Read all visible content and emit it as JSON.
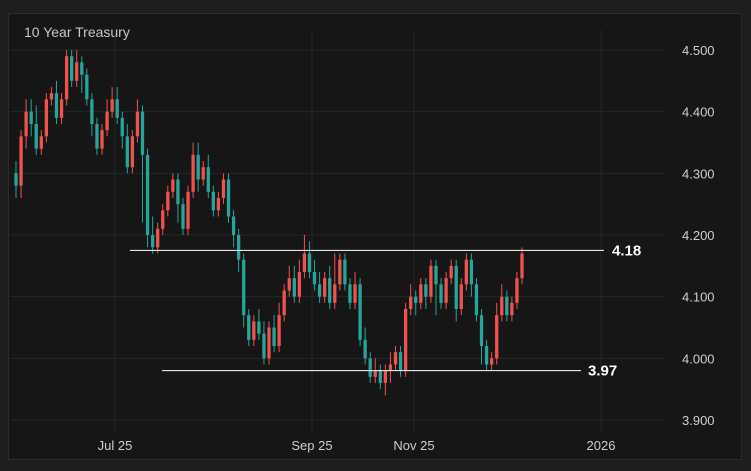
{
  "chart_data": {
    "type": "candlestick",
    "title": "10 Year Treasury",
    "ylim": [
      3.88,
      4.52
    ],
    "y_ticks": [
      "4.500",
      "4.400",
      "4.300",
      "4.200",
      "4.100",
      "4.000",
      "3.900"
    ],
    "x_ticks": [
      "Jul 25",
      "Sep 25",
      "Nov 25",
      "2026"
    ],
    "grid": true,
    "levels": [
      {
        "label": "4.18",
        "value": 4.175
      },
      {
        "label": "3.97",
        "value": 3.98
      }
    ],
    "colors": {
      "up": "#ef5350",
      "down": "#26a69a",
      "level": "#ffffff",
      "grid": "#262626"
    },
    "candles": [
      [
        4.3,
        4.28,
        4.32,
        4.26
      ],
      [
        4.28,
        4.36,
        4.37,
        4.26
      ],
      [
        4.36,
        4.4,
        4.42,
        4.34
      ],
      [
        4.4,
        4.38,
        4.42,
        4.36
      ],
      [
        4.38,
        4.34,
        4.41,
        4.33
      ],
      [
        4.34,
        4.36,
        4.37,
        4.33
      ],
      [
        4.36,
        4.42,
        4.43,
        4.35
      ],
      [
        4.42,
        4.43,
        4.44,
        4.41
      ],
      [
        4.43,
        4.39,
        4.45,
        4.38
      ],
      [
        4.39,
        4.42,
        4.43,
        4.38
      ],
      [
        4.42,
        4.49,
        4.5,
        4.41
      ],
      [
        4.49,
        4.45,
        4.5,
        4.44
      ],
      [
        4.45,
        4.48,
        4.5,
        4.44
      ],
      [
        4.48,
        4.46,
        4.49,
        4.43
      ],
      [
        4.46,
        4.42,
        4.47,
        4.41
      ],
      [
        4.42,
        4.38,
        4.43,
        4.36
      ],
      [
        4.38,
        4.34,
        4.39,
        4.33
      ],
      [
        4.34,
        4.37,
        4.38,
        4.33
      ],
      [
        4.37,
        4.4,
        4.42,
        4.36
      ],
      [
        4.4,
        4.42,
        4.44,
        4.39
      ],
      [
        4.42,
        4.39,
        4.44,
        4.38
      ],
      [
        4.39,
        4.36,
        4.4,
        4.34
      ],
      [
        4.36,
        4.31,
        4.38,
        4.3
      ],
      [
        4.31,
        4.36,
        4.37,
        4.3
      ],
      [
        4.36,
        4.4,
        4.42,
        4.35
      ],
      [
        4.4,
        4.33,
        4.41,
        4.22
      ],
      [
        4.33,
        4.2,
        4.34,
        4.18
      ],
      [
        4.2,
        4.18,
        4.23,
        4.17
      ],
      [
        4.18,
        4.21,
        4.22,
        4.17
      ],
      [
        4.21,
        4.24,
        4.25,
        4.2
      ],
      [
        4.24,
        4.27,
        4.28,
        4.23
      ],
      [
        4.27,
        4.29,
        4.3,
        4.26
      ],
      [
        4.29,
        4.25,
        4.3,
        4.22
      ],
      [
        4.25,
        4.21,
        4.26,
        4.2
      ],
      [
        4.21,
        4.27,
        4.28,
        4.2
      ],
      [
        4.27,
        4.33,
        4.35,
        4.26
      ],
      [
        4.33,
        4.29,
        4.35,
        4.27
      ],
      [
        4.29,
        4.31,
        4.32,
        4.28
      ],
      [
        4.31,
        4.27,
        4.33,
        4.26
      ],
      [
        4.27,
        4.24,
        4.28,
        4.23
      ],
      [
        4.24,
        4.26,
        4.27,
        4.23
      ],
      [
        4.26,
        4.29,
        4.3,
        4.25
      ],
      [
        4.29,
        4.23,
        4.3,
        4.22
      ],
      [
        4.23,
        4.2,
        4.24,
        4.18
      ],
      [
        4.2,
        4.16,
        4.21,
        4.14
      ],
      [
        4.16,
        4.07,
        4.17,
        4.05
      ],
      [
        4.07,
        4.03,
        4.08,
        4.02
      ],
      [
        4.03,
        4.06,
        4.07,
        4.02
      ],
      [
        4.06,
        4.04,
        4.08,
        4.03
      ],
      [
        4.04,
        4.0,
        4.06,
        3.99
      ],
      [
        4.0,
        4.05,
        4.06,
        3.99
      ],
      [
        4.05,
        4.02,
        4.07,
        4.01
      ],
      [
        4.02,
        4.07,
        4.09,
        4.01
      ],
      [
        4.07,
        4.11,
        4.12,
        4.06
      ],
      [
        4.11,
        4.13,
        4.15,
        4.1
      ],
      [
        4.13,
        4.1,
        4.15,
        4.09
      ],
      [
        4.1,
        4.14,
        4.16,
        4.09
      ],
      [
        4.14,
        4.17,
        4.2,
        4.13
      ],
      [
        4.17,
        4.14,
        4.19,
        4.13
      ],
      [
        4.14,
        4.12,
        4.16,
        4.11
      ],
      [
        4.12,
        4.1,
        4.14,
        4.09
      ],
      [
        4.1,
        4.13,
        4.14,
        4.09
      ],
      [
        4.13,
        4.09,
        4.15,
        4.08
      ],
      [
        4.09,
        4.12,
        4.17,
        4.08
      ],
      [
        4.12,
        4.16,
        4.17,
        4.11
      ],
      [
        4.16,
        4.12,
        4.17,
        4.11
      ],
      [
        4.12,
        4.09,
        4.13,
        4.08
      ],
      [
        4.09,
        4.12,
        4.14,
        4.08
      ],
      [
        4.12,
        4.03,
        4.13,
        4.02
      ],
      [
        4.03,
        4.0,
        4.05,
        3.99
      ],
      [
        4.0,
        3.97,
        4.01,
        3.96
      ],
      [
        3.97,
        3.98,
        4.0,
        3.96
      ],
      [
        3.98,
        3.96,
        3.99,
        3.95
      ],
      [
        3.96,
        3.98,
        3.99,
        3.94
      ],
      [
        3.98,
        3.99,
        4.01,
        3.96
      ],
      [
        3.99,
        4.01,
        4.02,
        3.98
      ],
      [
        4.01,
        3.98,
        4.02,
        3.97
      ],
      [
        3.98,
        4.08,
        4.09,
        3.97
      ],
      [
        4.08,
        4.1,
        4.12,
        4.07
      ],
      [
        4.1,
        4.09,
        4.11,
        4.07
      ],
      [
        4.09,
        4.12,
        4.13,
        4.08
      ],
      [
        4.12,
        4.1,
        4.13,
        4.08
      ],
      [
        4.1,
        4.15,
        4.16,
        4.09
      ],
      [
        4.15,
        4.12,
        4.16,
        4.07
      ],
      [
        4.12,
        4.09,
        4.13,
        4.08
      ],
      [
        4.09,
        4.13,
        4.14,
        4.08
      ],
      [
        4.13,
        4.15,
        4.16,
        4.12
      ],
      [
        4.15,
        4.08,
        4.16,
        4.06
      ],
      [
        4.08,
        4.12,
        4.13,
        4.07
      ],
      [
        4.12,
        4.16,
        4.17,
        4.11
      ],
      [
        4.16,
        4.12,
        4.17,
        4.1
      ],
      [
        4.12,
        4.07,
        4.13,
        4.06
      ],
      [
        4.07,
        4.02,
        4.08,
        3.99
      ],
      [
        4.02,
        3.99,
        4.03,
        3.98
      ],
      [
        3.99,
        4.0,
        4.01,
        3.98
      ],
      [
        4.0,
        4.07,
        4.09,
        3.99
      ],
      [
        4.07,
        4.1,
        4.12,
        4.06
      ],
      [
        4.1,
        4.07,
        4.11,
        4.06
      ],
      [
        4.07,
        4.09,
        4.1,
        4.06
      ],
      [
        4.09,
        4.13,
        4.14,
        4.08
      ],
      [
        4.13,
        4.17,
        4.18,
        4.12
      ]
    ]
  }
}
